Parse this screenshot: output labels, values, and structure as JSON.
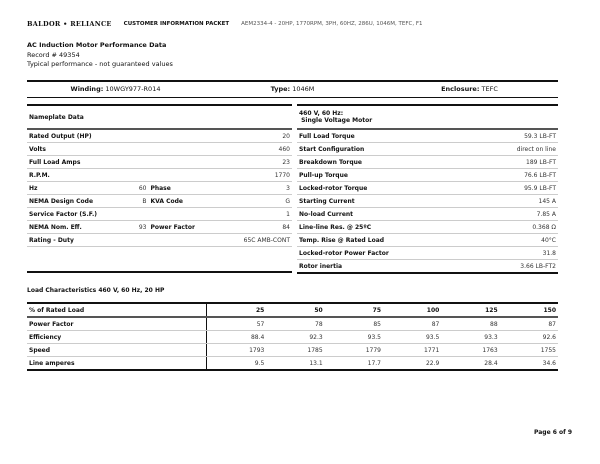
{
  "header": {
    "logo": "BALDOR • RELIANCE",
    "packet": "CUSTOMER INFORMATION PACKET",
    "model": "AEM2334-4 - 20HP, 1770RPM, 3PH, 60HZ, 286U, 1046M, TEFC, F1"
  },
  "intro": {
    "title": "AC Induction Motor Performance Data",
    "record": "Record # 49354",
    "note": "Typical performance - not guaranteed values"
  },
  "meta": [
    {
      "label": "Winding:",
      "value": "10WGY977-R014"
    },
    {
      "label": "Type:",
      "value": "1046M"
    },
    {
      "label": "Enclosure:",
      "value": "TEFC"
    }
  ],
  "nameplate": {
    "title": "Nameplate Data",
    "rows": [
      [
        "Rated Output (HP)",
        "",
        "",
        "20"
      ],
      [
        "Volts",
        "",
        "",
        "460"
      ],
      [
        "Full Load Amps",
        "",
        "",
        "23"
      ],
      [
        "R.P.M.",
        "",
        "",
        "1770"
      ],
      [
        "Hz",
        "60",
        "Phase",
        "3"
      ],
      [
        "NEMA Design Code",
        "B",
        "KVA Code",
        "G"
      ],
      [
        "Service Factor (S.F.)",
        "",
        "",
        "1"
      ],
      [
        "NEMA Nom. Eff.",
        "93",
        "Power Factor",
        "84"
      ],
      [
        "Rating - Duty",
        "",
        "",
        "65C AMB-CONT"
      ]
    ]
  },
  "motor": {
    "title1": "460 V, 60 Hz:",
    "title2": "Single Voltage Motor",
    "rows": [
      [
        "Full Load Torque",
        "59.3 LB-FT"
      ],
      [
        "Start Configuration",
        "direct on line"
      ],
      [
        "Breakdown Torque",
        "189 LB-FT"
      ],
      [
        "Pull-up Torque",
        "76.6 LB-FT"
      ],
      [
        "Locked-rotor Torque",
        "95.9 LB-FT"
      ],
      [
        "Starting Current",
        "145 A"
      ],
      [
        "No-load Current",
        "7.85 A"
      ],
      [
        "Line-line Res. @ 25ºC",
        "0.368 Ω"
      ],
      [
        "Temp. Rise @ Rated Load",
        "40°C"
      ],
      [
        "Locked-rotor Power Factor",
        "31.8"
      ],
      [
        "Rotor inertia",
        "3.66 LB-FT2"
      ]
    ]
  },
  "load": {
    "title": "Load Characteristics 460 V, 60 Hz, 20 HP",
    "header": [
      "% of Rated Load",
      "25",
      "50",
      "75",
      "100",
      "125",
      "150"
    ],
    "rows": [
      [
        "Power Factor",
        "57",
        "78",
        "85",
        "87",
        "88",
        "87"
      ],
      [
        "Efficiency",
        "88.4",
        "92.3",
        "93.5",
        "93.5",
        "93.3",
        "92.6"
      ],
      [
        "Speed",
        "1793",
        "1785",
        "1779",
        "1771",
        "1763",
        "1755"
      ],
      [
        "Line amperes",
        "9.5",
        "13.1",
        "17.7",
        "22.9",
        "28.4",
        "34.6"
      ]
    ]
  },
  "footer": {
    "page": "Page 6 of 9"
  }
}
